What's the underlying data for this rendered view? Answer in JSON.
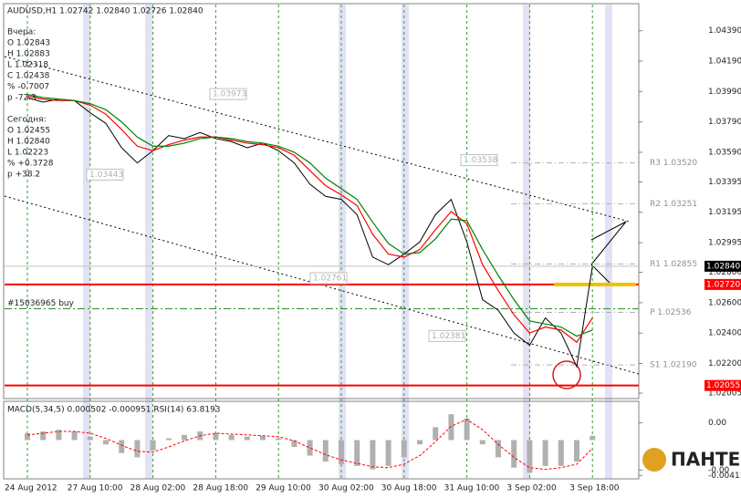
{
  "logo": "ПАНТЕОН",
  "chart_data": [
    {
      "type": "line",
      "title": "AUDUSD,H1  1.02742 1.02840 1.02726 1.02840",
      "info_lines": [
        "Вчера:",
        "O 1.02843",
        "H 1.02883",
        "L 1.02318",
        "C 1.02438",
        "% -0.7007",
        "p -72.3",
        "Сегодня:",
        "O 1.02455",
        "H 1.02840",
        "L 1.02223",
        "% +0.3728",
        "p +38.2"
      ],
      "categories": [
        "24 Aug 2012",
        null,
        null,
        null,
        "27 Aug 10:00",
        null,
        null,
        null,
        "28 Aug 02:00",
        null,
        null,
        null,
        "28 Aug 18:00",
        null,
        null,
        null,
        "29 Aug 10:00",
        null,
        null,
        null,
        "30 Aug 02:00",
        null,
        null,
        null,
        "30 Aug 18:00",
        null,
        null,
        null,
        "31 Aug 10:00",
        null,
        null,
        null,
        "3 Sep 02:00",
        null,
        null,
        null,
        "3 Sep 18:00"
      ],
      "series": [
        {
          "color": "#000000",
          "values": [
            1.0395,
            1.0392,
            1.0394,
            1.0393,
            1.0385,
            1.0378,
            1.0362,
            1.0352,
            1.036,
            1.037,
            1.0368,
            1.0372,
            1.0368,
            1.0366,
            1.0362,
            1.0365,
            1.036,
            1.0352,
            1.0338,
            1.033,
            1.0328,
            1.0318,
            1.029,
            1.0285,
            1.0292,
            1.03,
            1.0318,
            1.0328,
            1.03,
            1.0262,
            1.0255,
            1.024,
            1.0232,
            1.025,
            1.024,
            1.0218,
            1.0284
          ]
        },
        {
          "color": "#ff0000",
          "values": [
            1.0396,
            1.0394,
            1.0393,
            1.0393,
            1.039,
            1.0384,
            1.0374,
            1.0363,
            1.036,
            1.0364,
            1.0367,
            1.0369,
            1.0369,
            1.0367,
            1.0365,
            1.0364,
            1.0362,
            1.0357,
            1.0347,
            1.0337,
            1.0331,
            1.0324,
            1.0305,
            1.0292,
            1.029,
            1.0295,
            1.0308,
            1.032,
            1.0312,
            1.0285,
            1.0268,
            1.0252,
            1.024,
            1.0244,
            1.0242,
            1.0234,
            1.025
          ]
        },
        {
          "color": "#008000",
          "values": [
            1.0397,
            1.0395,
            1.0394,
            1.0393,
            1.0391,
            1.0387,
            1.0379,
            1.0369,
            1.0363,
            1.0363,
            1.0365,
            1.0368,
            1.0369,
            1.0368,
            1.0366,
            1.0365,
            1.0363,
            1.0359,
            1.0352,
            1.0342,
            1.0335,
            1.0328,
            1.0313,
            1.0299,
            1.0292,
            1.0293,
            1.0302,
            1.0315,
            1.0314,
            1.0295,
            1.0278,
            1.0262,
            1.0248,
            1.0246,
            1.0244,
            1.0238,
            1.0242
          ]
        }
      ],
      "ylim": [
        1.01969,
        1.04568
      ],
      "yticks": [
        {
          "value": 1.0439,
          "label": "1.04390"
        },
        {
          "value": 1.0419,
          "label": "1.04190"
        },
        {
          "value": 1.0399,
          "label": "1.03990"
        },
        {
          "value": 1.0379,
          "label": "1.03790"
        },
        {
          "value": 1.0359,
          "label": "1.03590"
        },
        1.03395,
        1.03195,
        1.02995,
        {
          "value": 1.028,
          "label": "1.02800"
        },
        {
          "value": 1.026,
          "label": "1.02600"
        },
        {
          "value": 1.024,
          "label": "1.02400"
        },
        {
          "value": 1.022,
          "label": "1.02200"
        },
        1.02005
      ],
      "levels": [
        {
          "value": 1.0272,
          "label": "1.02720",
          "color": "#ff0000"
        },
        {
          "value": 1.02055,
          "label": "1.02055",
          "color": "#ff0000"
        }
      ],
      "current_price": {
        "value": 1.0284,
        "label": "1.02840"
      },
      "order_line": {
        "value": 1.0256,
        "label": "#15036965 buy"
      },
      "pivots": [
        {
          "value": 1.0352,
          "label": "R3 1.03520"
        },
        {
          "value": 1.03251,
          "label": "R2 1.03251"
        },
        {
          "value": 1.02855,
          "label": "R1 1.02855"
        },
        {
          "value": 1.02536,
          "label": "P 1.02536"
        },
        {
          "value": 1.0219,
          "label": "S1 1.02190"
        }
      ],
      "price_marks": [
        {
          "value": 1.03973,
          "label": "1.03973"
        },
        {
          "value": 1.03443,
          "label": "1.03443"
        },
        {
          "value": 1.02761,
          "label": "1.02761"
        },
        {
          "value": 1.02381,
          "label": "1.02381"
        },
        {
          "value": 1.03538,
          "label": "1.03538"
        }
      ]
    },
    {
      "type": "bar",
      "title": "MACD(5,34,5) 0.000502 -0.000951 RSI(14) 63.8193",
      "series": [
        {
          "color": "#b0b0b0",
          "values": [
            0.0008,
            0.001,
            0.0012,
            0.001,
            0.0004,
            -0.0005,
            -0.0015,
            -0.002,
            -0.0012,
            0.0002,
            0.0006,
            0.001,
            0.0008,
            0.0006,
            0.0004,
            0.0005,
            0.0002,
            -0.0008,
            -0.0018,
            -0.0025,
            -0.0028,
            -0.003,
            -0.0034,
            -0.003,
            -0.002,
            -0.0005,
            0.0015,
            0.003,
            0.0025,
            -0.0005,
            -0.002,
            -0.0032,
            -0.0038,
            -0.003,
            -0.003,
            -0.0025,
            0.000502
          ]
        },
        {
          "color": "#ff0000",
          "values": [
            0.0006,
            0.0008,
            0.001,
            0.001,
            0.0008,
            0.0002,
            -0.0006,
            -0.0013,
            -0.0014,
            -0.0008,
            -0.0001,
            0.0005,
            0.0008,
            0.0007,
            0.0006,
            0.0005,
            0.0004,
            -0.0001,
            -0.0009,
            -0.0017,
            -0.0023,
            -0.0027,
            -0.0031,
            -0.0032,
            -0.0028,
            -0.0018,
            -0.0002,
            0.0016,
            0.0024,
            0.0012,
            -0.0005,
            -0.002,
            -0.0032,
            -0.0034,
            -0.0032,
            -0.0028,
            -0.000951
          ]
        }
      ],
      "ylim": [
        -0.0045,
        0.0045
      ],
      "yticks": [
        {
          "value": 0.002,
          "label": "0.00"
        },
        {
          "value": -0.0035,
          "label": "-0.00"
        },
        {
          "value": -0.00411,
          "label": "-0.00411"
        }
      ]
    }
  ]
}
